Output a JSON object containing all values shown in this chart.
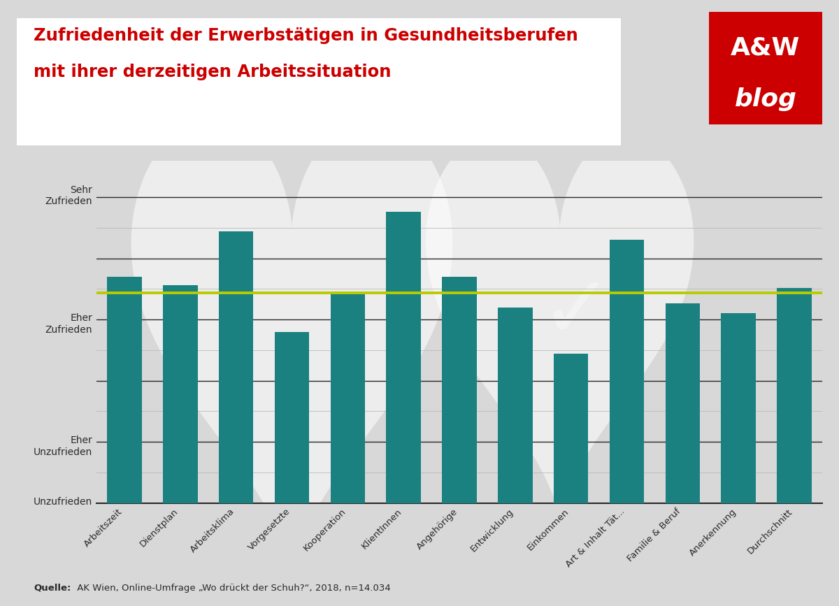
{
  "title_line1": "Zufriedenheit der Erwerbstätigen in Gesundheitsberufen",
  "title_line2": "mit ihrer derzeitigen Arbeitssituation",
  "title_color": "#cc0000",
  "background_color": "#d8d8d8",
  "plot_bg_color": "#d8d8d8",
  "bar_color": "#1a8080",
  "categories": [
    "Arbeitszeit",
    "Dienstplan",
    "Arbeitsklima",
    "Vorgesetzte",
    "Kooperation",
    "KlientInnen",
    "Angehörige",
    "Entwicklung",
    "Einkommen",
    "Art & Inhalt Tät...",
    "Familie & Beruf",
    "Anerkennung",
    "Durchschnitt"
  ],
  "values": [
    3.35,
    3.28,
    3.72,
    2.9,
    3.22,
    3.88,
    3.35,
    3.1,
    2.72,
    3.65,
    3.13,
    3.05,
    3.26
  ],
  "hline_dark_positions": [
    4.0,
    3.5,
    3.0,
    2.5,
    2.0
  ],
  "hline_minor_positions": [
    3.75,
    3.25,
    2.75,
    2.25,
    1.75
  ],
  "hline_yellow_position": 3.22,
  "y_min": 1.5,
  "y_max": 4.3,
  "ylabel_map": [
    [
      4.1,
      "Sehr\nZufrieden"
    ],
    [
      3.05,
      "Eher\nZufrieden"
    ],
    [
      2.05,
      "Eher\nUnzufrieden"
    ],
    [
      1.55,
      "Unzufrieden"
    ]
  ],
  "source_text_bold": "Quelle:",
  "source_text_normal": " AK Wien, Online-Umfrage „Wo drückt der Schuh?“, 2018, n=14.034",
  "logo_bg_color": "#cc0000",
  "logo_text1": "A&W",
  "logo_text2": "blog",
  "title_box_color": "#ffffff"
}
